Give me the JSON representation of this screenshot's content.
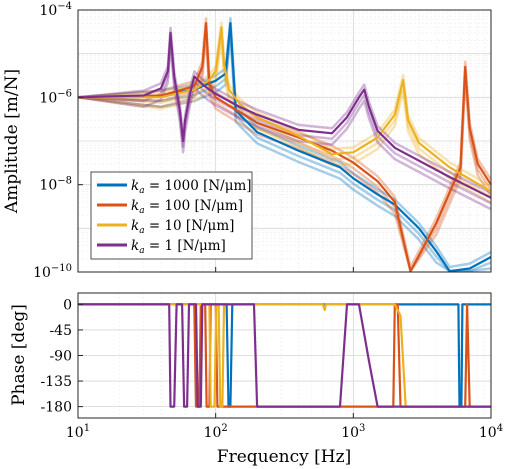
{
  "chart_data": [
    {
      "type": "line",
      "ylabel": "Amplitude [m/N]",
      "xscale": "log",
      "yscale": "log",
      "xlim": [
        10,
        10000
      ],
      "ylim": [
        1e-10,
        0.0001
      ],
      "grid": true,
      "legend_position": "bottom-left",
      "y_ticks": [
        {
          "label_base": "10",
          "label_exp": "−4",
          "value": 0.0001
        },
        {
          "label_base": "10",
          "label_exp": "−6",
          "value": 1e-06
        },
        {
          "label_base": "10",
          "label_exp": "−8",
          "value": 1e-08
        },
        {
          "label_base": "10",
          "label_exp": "−10",
          "value": 1e-10
        }
      ],
      "series": [
        {
          "name": "k_a = 1000 [N/μm]",
          "legend_sym": "k",
          "legend_sub": "a",
          "legend_rest": " = 1000 [N/μm]",
          "color": "#0072BD",
          "x": [
            10,
            40,
            70,
            100,
            118,
            128,
            140,
            200,
            400,
            800,
            1000,
            1500,
            2000,
            3000,
            4000,
            5000,
            7000,
            10000
          ],
          "y": [
            1e-06,
            1.1e-06,
            1.5e-06,
            2.4e-06,
            3.5e-06,
            5e-05,
            5e-07,
            1.6e-07,
            6e-08,
            2.5e-08,
            1.4e-08,
            6e-09,
            3.5e-09,
            1e-09,
            3e-10,
            1e-10,
            1.2e-10,
            2.2e-10
          ]
        },
        {
          "name": "k_a = 100 [N/μm]",
          "legend_sym": "k",
          "legend_sub": "a",
          "legend_rest": " = 100 [N/μm]",
          "color": "#D95319",
          "x": [
            10,
            40,
            70,
            80,
            85,
            90,
            100,
            200,
            400,
            700,
            1000,
            1500,
            2000,
            2600,
            4000,
            6000,
            6500,
            7000,
            8000,
            10000
          ],
          "y": [
            1e-06,
            1.1e-06,
            1.8e-06,
            5e-06,
            5e-05,
            2e-06,
            1e-06,
            2.6e-07,
            1.2e-07,
            6e-08,
            3.2e-08,
            1.2e-08,
            4e-09,
            1e-10,
            1.3e-09,
            2.5e-08,
            5e-06,
            2e-07,
            3e-08,
            1e-08
          ]
        },
        {
          "name": "k_a = 10 [N/μm]",
          "legend_sym": "k",
          "legend_sub": "a",
          "legend_rest": " = 10 [N/μm]",
          "color": "#EDB120",
          "x": [
            10,
            40,
            70,
            90,
            100,
            110,
            115,
            125,
            150,
            200,
            400,
            700,
            1000,
            1500,
            2000,
            2300,
            2500,
            3000,
            5000,
            10000
          ],
          "y": [
            1e-06,
            1e-06,
            1.5e-06,
            2.5e-06,
            4e-06,
            4e-05,
            6e-06,
            1.5e-06,
            7e-07,
            3.5e-07,
            1.3e-07,
            5e-08,
            5.5e-08,
            1.2e-07,
            4e-07,
            2.5e-06,
            3e-07,
            9e-08,
            2.5e-08,
            7e-09
          ]
        },
        {
          "name": "k_a = 1 [N/μm]",
          "legend_sym": "k",
          "legend_sub": "a",
          "legend_rest": " = 1 [N/μm]",
          "color": "#7E2F8E",
          "x": [
            10,
            30,
            40,
            45,
            47,
            50,
            55,
            58,
            60,
            65,
            70,
            80,
            90,
            100,
            150,
            200,
            400,
            700,
            900,
            1100,
            1200,
            1300,
            1500,
            2000,
            5000,
            10000
          ],
          "y": [
            1e-06,
            1.1e-06,
            1.6e-06,
            4e-06,
            3e-05,
            3e-06,
            5e-07,
            1e-07,
            3e-07,
            1.2e-06,
            3e-06,
            2e-06,
            1.5e-06,
            1.2e-06,
            6e-07,
            4e-07,
            1.8e-07,
            1.5e-07,
            3.5e-07,
            1e-06,
            1.5e-06,
            6e-07,
            1.7e-07,
            7e-08,
            1.5e-08,
            5e-09
          ]
        }
      ]
    },
    {
      "type": "line",
      "xlabel": "Frequency [Hz]",
      "ylabel": "Phase [deg]",
      "xscale": "log",
      "xlim": [
        10,
        10000
      ],
      "ylim": [
        -200,
        20
      ],
      "grid": true,
      "x_ticks": [
        {
          "label_base": "10",
          "label_exp": "1",
          "value": 10
        },
        {
          "label_base": "10",
          "label_exp": "2",
          "value": 100
        },
        {
          "label_base": "10",
          "label_exp": "3",
          "value": 1000
        },
        {
          "label_base": "10",
          "label_exp": "4",
          "value": 10000
        }
      ],
      "y_ticks": [
        {
          "label": "0",
          "value": 0
        },
        {
          "label": "-45",
          "value": -45
        },
        {
          "label": "-90",
          "value": -90
        },
        {
          "label": "-135",
          "value": -135
        },
        {
          "label": "-180",
          "value": -180
        }
      ],
      "series": [
        {
          "name": "k_a = 1000 [N/μm]",
          "color": "#0072BD",
          "x": [
            10,
            120,
            124,
            128,
            132,
            5800,
            5900,
            6100,
            6200,
            10000
          ],
          "y": [
            0,
            0,
            -180,
            -180,
            0,
            0,
            -180,
            -180,
            0,
            0
          ]
        },
        {
          "name": "k_a = 100 [N/μm]",
          "color": "#D95319",
          "x": [
            10,
            70,
            72,
            76,
            78,
            84,
            86,
            90,
            92,
            100,
            103,
            1950,
            2000,
            2100,
            2200,
            6500,
            6700,
            7000,
            10000
          ],
          "y": [
            0,
            0,
            -180,
            -180,
            0,
            0,
            -180,
            -180,
            0,
            0,
            -180,
            -180,
            0,
            0,
            -180,
            -180,
            0,
            -180,
            -180
          ]
        },
        {
          "name": "k_a = 10 [N/μm]",
          "color": "#EDB120",
          "x": [
            10,
            90,
            92,
            98,
            101,
            105,
            108,
            112,
            115,
            600,
            620,
            630,
            2000,
            2200,
            2400,
            2600,
            10000
          ],
          "y": [
            0,
            0,
            -180,
            -180,
            0,
            0,
            -180,
            -180,
            0,
            0,
            -10,
            0,
            0,
            -20,
            -180,
            -180,
            -180
          ]
        },
        {
          "name": "k_a = 1 [N/μm]",
          "color": "#7E2F8E",
          "x": [
            10,
            46,
            47,
            50,
            52,
            57,
            59,
            62,
            64,
            72,
            74,
            78,
            80,
            190,
            200,
            210,
            800,
            900,
            1100,
            1300,
            1500,
            10000
          ],
          "y": [
            0,
            0,
            -180,
            -180,
            0,
            0,
            -180,
            -180,
            0,
            0,
            -180,
            -180,
            0,
            0,
            -180,
            -180,
            -180,
            0,
            0,
            -100,
            -180,
            -180
          ]
        }
      ]
    }
  ]
}
